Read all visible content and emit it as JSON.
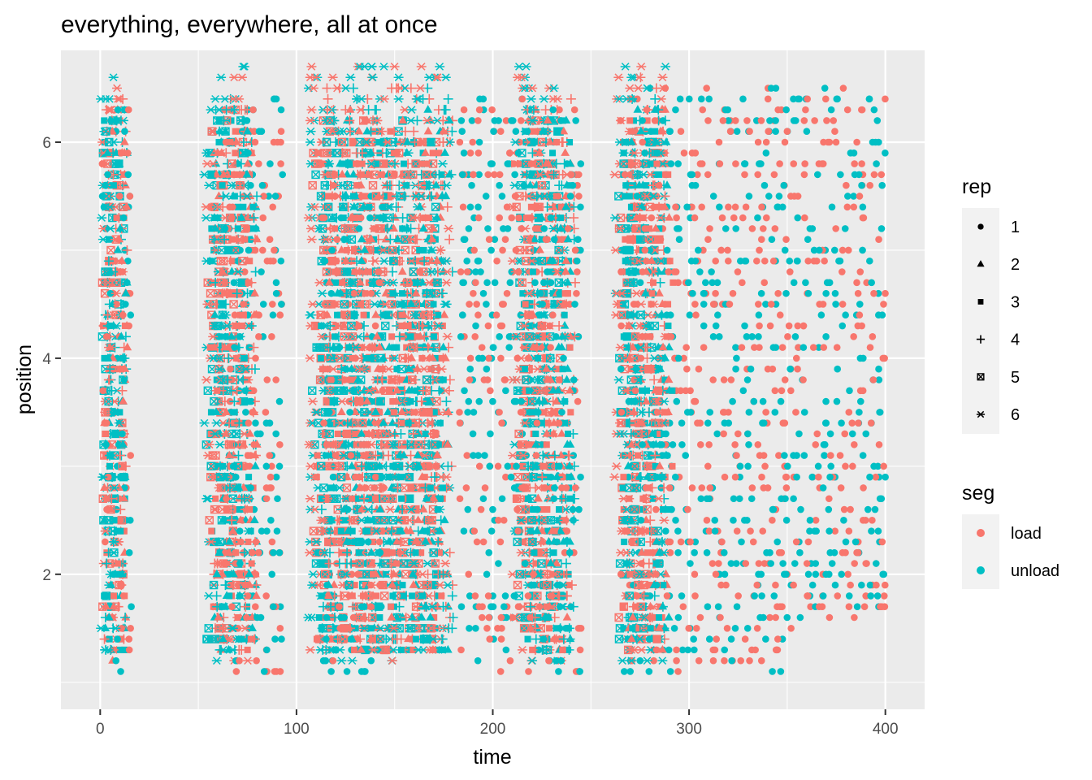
{
  "chart_data": {
    "type": "scatter",
    "title": "everything, everywhere, all at once",
    "xlabel": "time",
    "ylabel": "position",
    "xlim": [
      -20,
      420
    ],
    "ylim": [
      0.75,
      6.85
    ],
    "x_ticks": [
      0,
      100,
      200,
      300,
      400
    ],
    "x_tick_labels": [
      "0",
      "100",
      "200",
      "300",
      "400"
    ],
    "y_ticks": [
      2,
      4,
      6
    ],
    "y_tick_labels": [
      "2",
      "4",
      "6"
    ],
    "grid": true,
    "legend_placement": "right",
    "shape_legend": {
      "title": "rep",
      "entries": [
        {
          "label": "1",
          "shape": "circle"
        },
        {
          "label": "2",
          "shape": "triangle"
        },
        {
          "label": "3",
          "shape": "square"
        },
        {
          "label": "4",
          "shape": "plus"
        },
        {
          "label": "5",
          "shape": "square-cross"
        },
        {
          "label": "6",
          "shape": "asterisk"
        }
      ]
    },
    "color_legend": {
      "title": "seg",
      "entries": [
        {
          "label": "load",
          "color": "#F8766D"
        },
        {
          "label": "unload",
          "color": "#00BFC4"
        }
      ]
    },
    "series": [
      {
        "rep": 1,
        "segments": [
          {
            "t0": 1,
            "t1": 16,
            "ymin": 1.0,
            "ymax": 6.3
          },
          {
            "t0": 63,
            "t1": 93,
            "ymin": 1.05,
            "ymax": 6.4
          },
          {
            "t0": 113,
            "t1": 145,
            "ymin": 1.05,
            "ymax": 5.6
          },
          {
            "t0": 183,
            "t1": 245,
            "ymin": 1.05,
            "ymax": 6.4
          },
          {
            "t0": 265,
            "t1": 352,
            "ymin": 1.1,
            "ymax": 6.5
          },
          {
            "t0": 353,
            "t1": 400,
            "ymin": 1.6,
            "ymax": 6.5
          }
        ]
      },
      {
        "rep": 2,
        "segments": [
          {
            "t0": 2,
            "t1": 14,
            "ymin": 1.2,
            "ymax": 6.3
          },
          {
            "t0": 58,
            "t1": 80,
            "ymin": 1.25,
            "ymax": 6.2
          },
          {
            "t0": 115,
            "t1": 178,
            "ymin": 1.25,
            "ymax": 6.3
          },
          {
            "t0": 218,
            "t1": 240,
            "ymin": 1.3,
            "ymax": 6.3
          },
          {
            "t0": 268,
            "t1": 290,
            "ymin": 1.3,
            "ymax": 6.4
          }
        ]
      },
      {
        "rep": 3,
        "segments": [
          {
            "t0": 2,
            "t1": 13,
            "ymin": 1.25,
            "ymax": 6.3
          },
          {
            "t0": 56,
            "t1": 78,
            "ymin": 1.3,
            "ymax": 6.3
          },
          {
            "t0": 110,
            "t1": 175,
            "ymin": 1.25,
            "ymax": 6.2
          },
          {
            "t0": 215,
            "t1": 240,
            "ymin": 1.3,
            "ymax": 6.2
          },
          {
            "t0": 266,
            "t1": 292,
            "ymin": 1.3,
            "ymax": 6.3
          }
        ]
      },
      {
        "rep": 4,
        "segments": [
          {
            "t0": 2,
            "t1": 14,
            "ymin": 1.3,
            "ymax": 6.4
          },
          {
            "t0": 58,
            "t1": 80,
            "ymin": 1.3,
            "ymax": 6.4
          },
          {
            "t0": 112,
            "t1": 180,
            "ymin": 1.3,
            "ymax": 6.5
          },
          {
            "t0": 216,
            "t1": 242,
            "ymin": 1.3,
            "ymax": 6.4
          },
          {
            "t0": 268,
            "t1": 288,
            "ymin": 1.3,
            "ymax": 6.6
          }
        ]
      },
      {
        "rep": 5,
        "segments": [
          {
            "t0": 1,
            "t1": 12,
            "ymin": 1.3,
            "ymax": 6.2
          },
          {
            "t0": 54,
            "t1": 74,
            "ymin": 1.3,
            "ymax": 6.3
          },
          {
            "t0": 108,
            "t1": 172,
            "ymin": 1.3,
            "ymax": 6.2
          },
          {
            "t0": 212,
            "t1": 235,
            "ymin": 1.3,
            "ymax": 6.3
          },
          {
            "t0": 264,
            "t1": 285,
            "ymin": 1.3,
            "ymax": 6.2
          }
        ]
      },
      {
        "rep": 6,
        "segments": [
          {
            "t0": 0,
            "t1": 12,
            "ymin": 1.2,
            "ymax": 6.6
          },
          {
            "t0": 53,
            "t1": 76,
            "ymin": 1.2,
            "ymax": 6.7
          },
          {
            "t0": 106,
            "t1": 178,
            "ymin": 1.2,
            "ymax": 6.75
          },
          {
            "t0": 210,
            "t1": 238,
            "ymin": 1.2,
            "ymax": 6.72
          },
          {
            "t0": 262,
            "t1": 288,
            "ymin": 1.2,
            "ymax": 6.72
          }
        ]
      }
    ]
  }
}
